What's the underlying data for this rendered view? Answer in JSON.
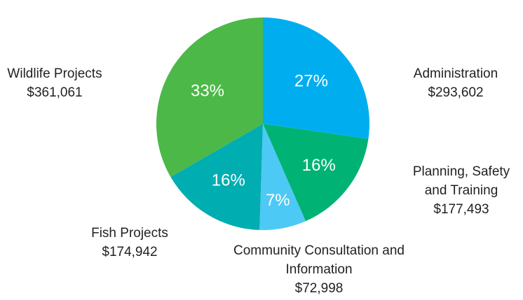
{
  "chart_data": {
    "type": "pie",
    "categories": [
      "Administration",
      "Planning, Safety and Training",
      "Community Consultation and Information",
      "Fish Projects",
      "Wildlife Projects"
    ],
    "values": [
      27,
      16,
      7,
      16,
      33
    ],
    "value_labels": [
      "27%",
      "16%",
      "7%",
      "16%",
      "33%"
    ],
    "amount_labels": [
      "$293,602",
      "$177,493",
      "$72,998",
      "$174,942",
      "$361,061"
    ],
    "colors": [
      "#00aeef",
      "#00b274",
      "#4dc9f6",
      "#00adb0",
      "#4cb848"
    ]
  }
}
